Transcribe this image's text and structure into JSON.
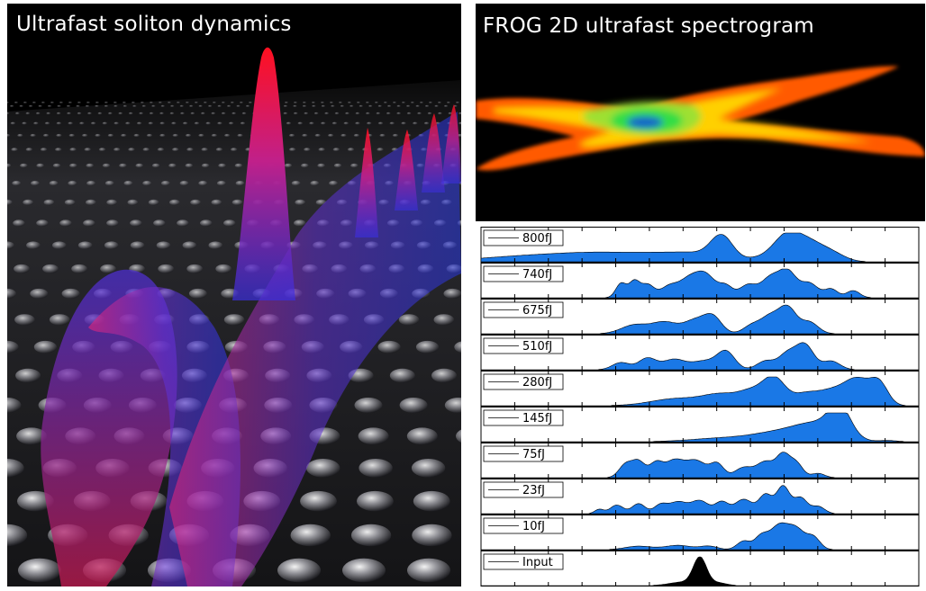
{
  "left_image": {
    "title": "Ultrafast soliton dynamics",
    "colors": {
      "peak": "#ff1a2a",
      "wave": "#3a3cff",
      "bg": "#000000",
      "pillar": "#c8c8c8"
    }
  },
  "frog_image": {
    "title": "FROG 2D ultrafast spectrogram",
    "colors": {
      "outer": "#ff5a00",
      "mid": "#ffd000",
      "inner": "#33dd44",
      "core": "#1464c8",
      "bg": "#000000"
    }
  },
  "chart_data": {
    "type": "area",
    "fill_color": "#1a78e6",
    "input_color": "#000000",
    "xlim": [
      0,
      1
    ],
    "x_ticks": 13,
    "series": [
      {
        "name": "800fJ",
        "peaks": [
          [
            0.12,
            0.12,
            0.2
          ],
          [
            0.3,
            0.1,
            0.25
          ],
          [
            0.42,
            0.06,
            0.15
          ],
          [
            0.5,
            0.05,
            0.2
          ],
          [
            0.55,
            0.025,
            0.8
          ],
          [
            0.65,
            0.04,
            0.15
          ],
          [
            0.7,
            0.03,
            0.85
          ],
          [
            0.75,
            0.03,
            0.55
          ],
          [
            0.8,
            0.03,
            0.3
          ]
        ]
      },
      {
        "name": "740fJ",
        "peaks": [
          [
            0.32,
            0.012,
            0.5
          ],
          [
            0.35,
            0.012,
            0.55
          ],
          [
            0.38,
            0.015,
            0.45
          ],
          [
            0.43,
            0.02,
            0.4
          ],
          [
            0.47,
            0.02,
            0.45
          ],
          [
            0.51,
            0.025,
            0.85
          ],
          [
            0.56,
            0.015,
            0.35
          ],
          [
            0.61,
            0.02,
            0.45
          ],
          [
            0.66,
            0.02,
            0.65
          ],
          [
            0.7,
            0.02,
            0.9
          ],
          [
            0.75,
            0.02,
            0.5
          ],
          [
            0.8,
            0.015,
            0.3
          ],
          [
            0.85,
            0.015,
            0.25
          ]
        ]
      },
      {
        "name": "675fJ",
        "peaks": [
          [
            0.35,
            0.03,
            0.3
          ],
          [
            0.42,
            0.03,
            0.4
          ],
          [
            0.49,
            0.025,
            0.45
          ],
          [
            0.53,
            0.02,
            0.55
          ],
          [
            0.62,
            0.02,
            0.3
          ],
          [
            0.66,
            0.02,
            0.55
          ],
          [
            0.7,
            0.02,
            0.9
          ],
          [
            0.75,
            0.02,
            0.4
          ]
        ]
      },
      {
        "name": "510fJ",
        "peaks": [
          [
            0.32,
            0.02,
            0.25
          ],
          [
            0.38,
            0.02,
            0.4
          ],
          [
            0.44,
            0.025,
            0.35
          ],
          [
            0.51,
            0.03,
            0.3
          ],
          [
            0.56,
            0.02,
            0.6
          ],
          [
            0.65,
            0.02,
            0.3
          ],
          [
            0.7,
            0.02,
            0.55
          ],
          [
            0.74,
            0.02,
            0.85
          ],
          [
            0.8,
            0.02,
            0.3
          ]
        ]
      },
      {
        "name": "280fJ",
        "peaks": [
          [
            0.45,
            0.06,
            0.25
          ],
          [
            0.55,
            0.04,
            0.35
          ],
          [
            0.62,
            0.03,
            0.45
          ],
          [
            0.67,
            0.025,
            0.9
          ],
          [
            0.74,
            0.03,
            0.4
          ],
          [
            0.8,
            0.03,
            0.45
          ],
          [
            0.86,
            0.03,
            0.9
          ],
          [
            0.91,
            0.02,
            0.7
          ]
        ]
      },
      {
        "name": "145fJ",
        "peaks": [
          [
            0.55,
            0.07,
            0.12
          ],
          [
            0.68,
            0.06,
            0.3
          ],
          [
            0.77,
            0.05,
            0.55
          ],
          [
            0.82,
            0.025,
            0.95
          ],
          [
            0.93,
            0.02,
            0.04
          ]
        ]
      },
      {
        "name": "75fJ",
        "peaks": [
          [
            0.33,
            0.015,
            0.45
          ],
          [
            0.36,
            0.015,
            0.55
          ],
          [
            0.4,
            0.015,
            0.5
          ],
          [
            0.44,
            0.02,
            0.55
          ],
          [
            0.49,
            0.025,
            0.6
          ],
          [
            0.54,
            0.015,
            0.45
          ],
          [
            0.6,
            0.02,
            0.35
          ],
          [
            0.65,
            0.02,
            0.55
          ],
          [
            0.69,
            0.015,
            0.75
          ],
          [
            0.72,
            0.015,
            0.5
          ],
          [
            0.77,
            0.015,
            0.15
          ]
        ]
      },
      {
        "name": "23fJ",
        "peaks": [
          [
            0.27,
            0.01,
            0.15
          ],
          [
            0.31,
            0.015,
            0.3
          ],
          [
            0.36,
            0.015,
            0.35
          ],
          [
            0.41,
            0.015,
            0.3
          ],
          [
            0.45,
            0.02,
            0.4
          ],
          [
            0.5,
            0.02,
            0.45
          ],
          [
            0.55,
            0.015,
            0.4
          ],
          [
            0.6,
            0.02,
            0.5
          ],
          [
            0.65,
            0.015,
            0.65
          ],
          [
            0.69,
            0.015,
            0.95
          ],
          [
            0.73,
            0.015,
            0.55
          ],
          [
            0.77,
            0.015,
            0.25
          ]
        ]
      },
      {
        "name": "10fJ",
        "peaks": [
          [
            0.36,
            0.03,
            0.12
          ],
          [
            0.45,
            0.03,
            0.15
          ],
          [
            0.52,
            0.02,
            0.12
          ],
          [
            0.6,
            0.015,
            0.3
          ],
          [
            0.64,
            0.015,
            0.45
          ],
          [
            0.68,
            0.02,
            0.8
          ],
          [
            0.72,
            0.02,
            0.7
          ],
          [
            0.76,
            0.015,
            0.4
          ]
        ]
      },
      {
        "name": "Input",
        "color": "#000000",
        "peaks": [
          [
            0.5,
            0.015,
            0.95
          ],
          [
            0.46,
            0.03,
            0.12
          ],
          [
            0.54,
            0.02,
            0.1
          ]
        ]
      }
    ]
  }
}
